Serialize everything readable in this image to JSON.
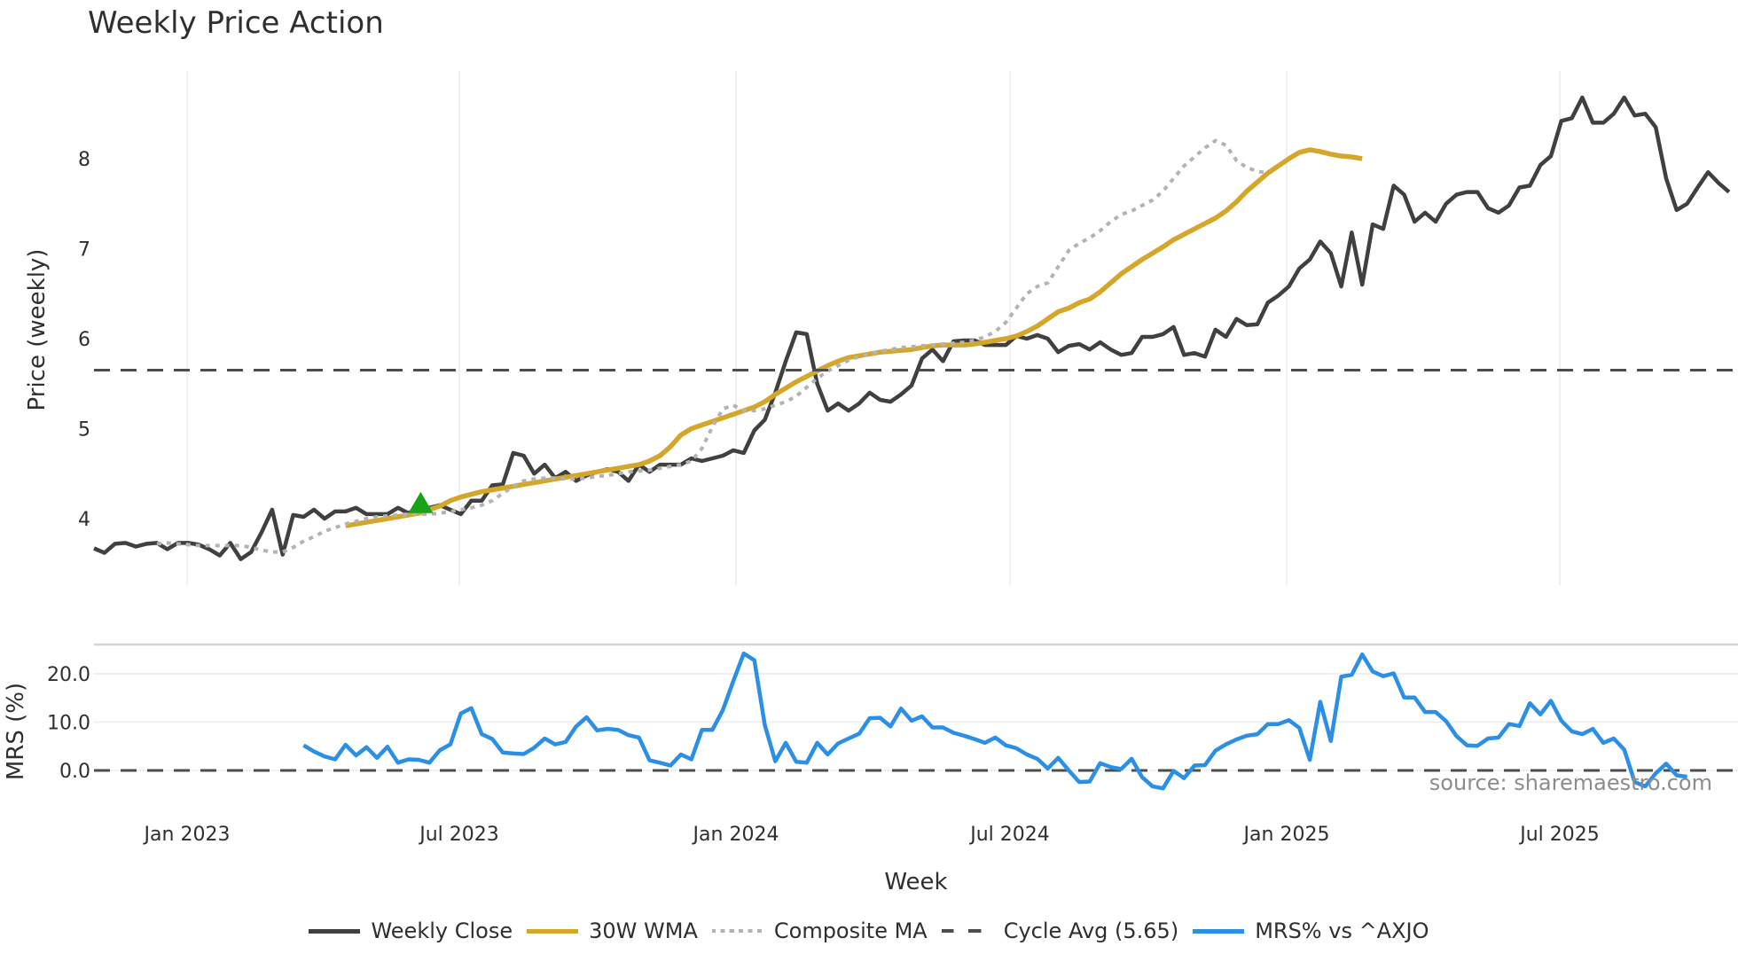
{
  "chart_data": {
    "type": "line",
    "title": "Weekly Price Action",
    "xlabel": "Week",
    "panels": [
      {
        "name": "price",
        "ylabel": "Price (weekly)",
        "yticks": [
          4,
          5,
          6,
          7,
          8
        ],
        "ylim": [
          3.5,
          8.9
        ],
        "grid": "vertical"
      },
      {
        "name": "mrs",
        "ylabel": "MRS (%)",
        "yticks": [
          "0.0",
          "10.0",
          "20.0"
        ],
        "ylim": [
          -8,
          26
        ],
        "grid": "horizontal"
      }
    ],
    "xticks": [
      "Jan 2023",
      "Jul 2023",
      "Jan 2024",
      "Jul 2024",
      "Jan 2025",
      "Jul 2025"
    ],
    "x_start_week_offset_from_jan2023": -9,
    "series": [
      {
        "name": "Weekly Close",
        "color": "#404040",
        "style": "solid",
        "values": [
          3.67,
          3.62,
          3.72,
          3.73,
          3.69,
          3.72,
          3.73,
          3.66,
          3.73,
          3.73,
          3.71,
          3.66,
          3.59,
          3.73,
          3.55,
          3.63,
          3.85,
          4.1,
          3.6,
          4.04,
          4.02,
          4.1,
          4.0,
          4.08,
          4.08,
          4.12,
          4.05,
          4.05,
          4.05,
          4.12,
          4.06,
          4.12,
          4.12,
          4.15,
          4.1,
          4.05,
          4.2,
          4.2,
          4.37,
          4.38,
          4.73,
          4.7,
          4.5,
          4.6,
          4.45,
          4.52,
          4.42,
          4.48,
          4.52,
          4.55,
          4.52,
          4.42,
          4.6,
          4.52,
          4.6,
          4.6,
          4.6,
          4.67,
          4.64,
          4.67,
          4.7,
          4.76,
          4.73,
          4.98,
          5.1,
          5.4,
          5.75,
          6.07,
          6.05,
          5.5,
          5.2,
          5.28,
          5.2,
          5.28,
          5.4,
          5.32,
          5.3,
          5.38,
          5.48,
          5.78,
          5.88,
          5.75,
          5.97,
          5.98,
          5.98,
          5.93,
          5.93,
          5.93,
          6.03,
          6.0,
          6.04,
          6.0,
          5.85,
          5.92,
          5.94,
          5.88,
          5.96,
          5.88,
          5.82,
          5.84,
          6.02,
          6.02,
          6.05,
          6.13,
          5.82,
          5.84,
          5.8,
          6.1,
          6.02,
          6.22,
          6.15,
          6.16,
          6.4,
          6.48,
          6.58,
          6.78,
          6.88,
          7.08,
          6.95,
          6.58,
          7.18,
          6.6,
          7.27,
          7.22,
          7.7,
          7.6,
          7.3,
          7.4,
          7.3,
          7.5,
          7.6,
          7.63,
          7.63,
          7.45,
          7.4,
          7.48,
          7.68,
          7.7,
          7.93,
          8.03,
          8.42,
          8.45,
          8.68,
          8.4,
          8.4,
          8.5,
          8.68,
          8.48,
          8.5,
          8.35,
          7.78,
          7.43,
          7.5,
          7.68,
          7.85,
          7.73,
          7.63
        ],
        "start_index": 0
      },
      {
        "name": "30W WMA",
        "color": "#d4a62a",
        "style": "solid",
        "values": [
          3.92,
          3.94,
          3.96,
          3.98,
          4.0,
          4.02,
          4.04,
          4.06,
          4.1,
          4.14,
          4.2,
          4.24,
          4.27,
          4.3,
          4.32,
          4.34,
          4.36,
          4.38,
          4.4,
          4.42,
          4.44,
          4.46,
          4.48,
          4.5,
          4.52,
          4.54,
          4.56,
          4.58,
          4.6,
          4.64,
          4.7,
          4.8,
          4.93,
          5.0,
          5.04,
          5.08,
          5.12,
          5.16,
          5.2,
          5.24,
          5.3,
          5.38,
          5.45,
          5.52,
          5.58,
          5.64,
          5.7,
          5.75,
          5.79,
          5.81,
          5.83,
          5.85,
          5.86,
          5.87,
          5.88,
          5.9,
          5.92,
          5.93,
          5.93,
          5.93,
          5.94,
          5.96,
          5.98,
          6.0,
          6.03,
          6.08,
          6.14,
          6.22,
          6.3,
          6.34,
          6.4,
          6.44,
          6.52,
          6.62,
          6.72,
          6.8,
          6.88,
          6.95,
          7.02,
          7.1,
          7.16,
          7.22,
          7.28,
          7.34,
          7.42,
          7.52,
          7.64,
          7.74,
          7.84,
          7.92,
          8.0,
          8.07,
          8.1,
          8.08,
          8.05,
          8.03,
          8.02,
          8.0
        ],
        "start_index": 24
      },
      {
        "name": "Composite MA",
        "color": "#b3b3b3",
        "style": "dotted",
        "values": [
          3.72,
          3.73,
          3.72,
          3.71,
          3.7,
          3.7,
          3.7,
          3.7,
          3.7,
          3.68,
          3.65,
          3.63,
          3.63,
          3.68,
          3.75,
          3.8,
          3.86,
          3.9,
          3.94,
          3.97,
          4.0,
          4.02,
          4.03,
          4.04,
          4.05,
          4.05,
          4.05,
          4.06,
          4.08,
          4.1,
          4.12,
          4.15,
          4.2,
          4.28,
          4.36,
          4.42,
          4.44,
          4.45,
          4.45,
          4.44,
          4.44,
          4.45,
          4.47,
          4.48,
          4.5,
          4.52,
          4.53,
          4.54,
          4.56,
          4.58,
          4.6,
          4.64,
          4.78,
          5.02,
          5.22,
          5.26,
          5.2,
          5.2,
          5.22,
          5.26,
          5.3,
          5.36,
          5.46,
          5.56,
          5.64,
          5.7,
          5.76,
          5.8,
          5.83,
          5.86,
          5.88,
          5.9,
          5.91,
          5.92,
          5.93,
          5.94,
          5.95,
          5.96,
          5.98,
          6.02,
          6.08,
          6.18,
          6.34,
          6.5,
          6.58,
          6.62,
          6.8,
          6.98,
          7.06,
          7.12,
          7.2,
          7.3,
          7.38,
          7.42,
          7.48,
          7.54,
          7.64,
          7.78,
          7.92,
          8.02,
          8.12,
          8.2,
          8.15,
          7.98,
          7.9,
          7.86,
          7.84
        ],
        "start_index": 6
      },
      {
        "name": "Cycle Avg (5.65)",
        "color": "#4d4d4d",
        "style": "dashed",
        "value": 5.65
      },
      {
        "name": "MRS% vs ^AXJO",
        "color": "#2b8fe6",
        "style": "solid",
        "panel": "mrs",
        "values": [
          5.2,
          3.9,
          2.9,
          2.3,
          5.3,
          3.1,
          4.8,
          2.6,
          4.9,
          1.6,
          2.3,
          2.2,
          1.6,
          4.2,
          5.4,
          11.8,
          12.9,
          7.5,
          6.5,
          3.7,
          3.5,
          3.4,
          4.7,
          6.6,
          5.4,
          5.9,
          9.1,
          11.0,
          8.3,
          8.6,
          8.4,
          7.3,
          6.8,
          2.1,
          1.6,
          1.0,
          3.3,
          2.3,
          8.4,
          8.4,
          12.5,
          18.5,
          24.2,
          22.8,
          9.4,
          1.9,
          5.7,
          1.8,
          1.6,
          5.7,
          3.3,
          5.6,
          6.6,
          7.6,
          10.8,
          10.9,
          9.1,
          12.8,
          10.3,
          11.2,
          8.9,
          8.9,
          7.8,
          7.2,
          6.5,
          5.7,
          6.8,
          5.2,
          4.6,
          3.3,
          2.4,
          0.4,
          2.6,
          0.0,
          -2.4,
          -2.3,
          1.5,
          0.7,
          0.3,
          2.4,
          -1.4,
          -3.3,
          -3.7,
          -0.1,
          -1.6,
          1.0,
          1.1,
          4.1,
          5.4,
          6.4,
          7.2,
          7.5,
          9.6,
          9.6,
          10.4,
          8.8,
          2.2,
          14.2,
          6.1,
          19.4,
          19.8,
          24.0,
          20.5,
          19.5,
          20.1,
          15.1,
          15.1,
          12.1,
          12.1,
          10.2,
          7.1,
          5.2,
          5.1,
          6.6,
          6.8,
          9.6,
          9.2,
          13.9,
          11.6,
          14.4,
          10.3,
          8.1,
          7.5,
          8.6,
          5.7,
          6.6,
          4.3,
          -2.4,
          -3.3,
          -0.6,
          1.4,
          -1.0,
          -1.3
        ],
        "start_index": 20
      }
    ],
    "annotations": [
      {
        "type": "marker",
        "shape": "triangle-up",
        "color": "#1aa31a",
        "x_index": 31,
        "y": 4.2
      }
    ],
    "legend": {
      "position": "bottom",
      "orientation": "horizontal"
    },
    "source": "source: sharemaestro.com"
  },
  "legend_items": [
    {
      "label": "Weekly Close",
      "color": "#404040",
      "style": "solid"
    },
    {
      "label": "30W WMA",
      "color": "#d4a62a",
      "style": "solid"
    },
    {
      "label": "Composite MA",
      "color": "#b3b3b3",
      "style": "dotted"
    },
    {
      "label": "Cycle Avg (5.65)",
      "color": "#4d4d4d",
      "style": "dashed"
    },
    {
      "label": "MRS% vs ^AXJO",
      "color": "#2b8fe6",
      "style": "solid"
    }
  ]
}
